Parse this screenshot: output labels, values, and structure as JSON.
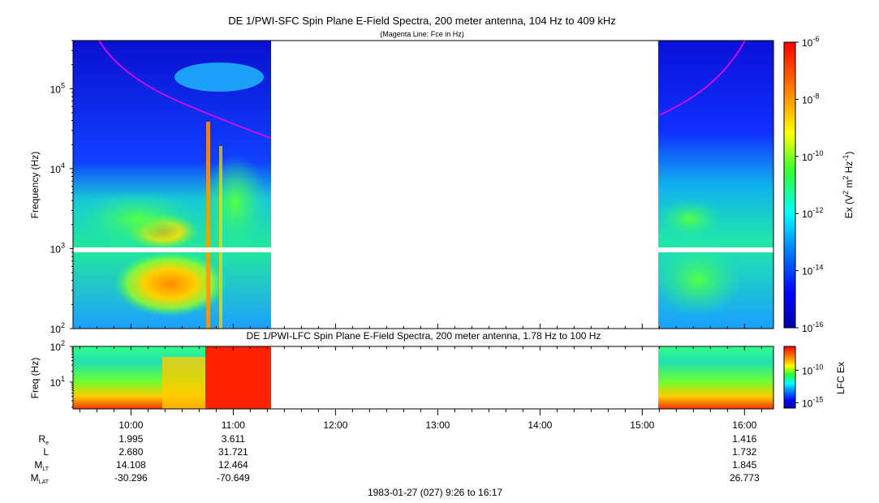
{
  "chart_data": [
    {
      "type": "heatmap",
      "title": "DE 1/PWI-SFC  Spin Plane E-Field Spectra, 200 meter antenna, 104 Hz to 409 kHz",
      "subtitle": "(Magenta Line: Fce in Hz)",
      "ylabel": "Frequency (Hz)",
      "y_scale": "log",
      "ylim_hz": [
        100,
        400000
      ],
      "y_ticks": [
        {
          "base": "10",
          "exp": "2"
        },
        {
          "base": "10",
          "exp": "3"
        },
        {
          "base": "10",
          "exp": "4"
        },
        {
          "base": "10",
          "exp": "5"
        }
      ],
      "colorbar": {
        "label_parts": {
          "a": "Ex (V",
          "b": "2",
          "c": " m",
          "d": "2",
          "e": " Hz",
          "f": "-1",
          "g": ")"
        },
        "scale": "log",
        "range": [
          1e-16,
          1e-06
        ],
        "ticks": [
          {
            "base": "10",
            "exp": "-6"
          },
          {
            "base": "10",
            "exp": "-8"
          },
          {
            "base": "10",
            "exp": "-10"
          },
          {
            "base": "10",
            "exp": "-12"
          },
          {
            "base": "10",
            "exp": "-14"
          },
          {
            "base": "10",
            "exp": "-16"
          }
        ]
      },
      "data_coverage": [
        [
          "09:26",
          "11:22"
        ],
        [
          "15:12",
          "16:17"
        ]
      ],
      "overlay_line": {
        "color": "#ff00ff",
        "label": "Fce in Hz"
      },
      "notable_features": [
        {
          "time_range": [
            "10:05",
            "10:30"
          ],
          "freq_range_hz": [
            250,
            3000
          ],
          "level": "~1e-9"
        },
        {
          "time_range": [
            "10:45",
            "10:55"
          ],
          "freq_range_hz": [
            100,
            50000
          ],
          "level": "~1e-8"
        }
      ]
    },
    {
      "type": "heatmap",
      "title": "DE 1/PWI-LFC  Spin Plane E-Field Spectra, 200 meter antenna, 1.78 Hz to 100 Hz",
      "ylabel": "Freq (Hz)",
      "y_scale": "log",
      "ylim_hz": [
        1.78,
        100
      ],
      "y_ticks": [
        {
          "base": "10",
          "exp": "1"
        },
        {
          "base": "10",
          "exp": "2"
        }
      ],
      "colorbar": {
        "label": "LFC Ex",
        "scale": "log",
        "ticks": [
          {
            "base": "10",
            "exp": "-10"
          },
          {
            "base": "10",
            "exp": "-15"
          }
        ]
      },
      "data_coverage": [
        [
          "09:26",
          "11:22"
        ],
        [
          "15:12",
          "16:17"
        ]
      ]
    }
  ],
  "x_axis": {
    "ticks": [
      "10:00",
      "11:00",
      "12:00",
      "13:00",
      "14:00",
      "15:00",
      "16:00"
    ],
    "range": [
      "09:26",
      "16:17"
    ]
  },
  "ephemeris": {
    "rows": [
      {
        "label": "R",
        "sub": "e",
        "values": [
          "1.995",
          "3.611",
          "",
          "",
          "",
          "",
          "1.416"
        ]
      },
      {
        "label": "L",
        "sub": "",
        "values": [
          "2.680",
          "31.721",
          "",
          "",
          "",
          "",
          "1.732"
        ]
      },
      {
        "label": "M",
        "sub": "LT",
        "values": [
          "14.108",
          "12.464",
          "",
          "",
          "",
          "",
          "1.845"
        ]
      },
      {
        "label": "M",
        "sub": "LAT",
        "values": [
          "-30.296",
          "-70.649",
          "",
          "",
          "",
          "",
          "26.773"
        ]
      }
    ]
  },
  "footer": "1983-01-27 (027) 9:26 to 16:17"
}
